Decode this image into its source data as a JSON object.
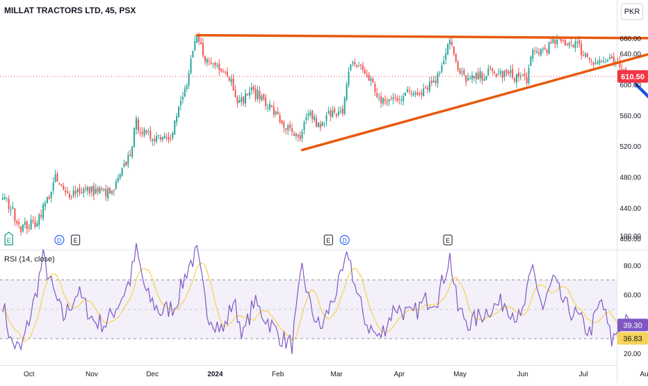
{
  "header": {
    "title": "MILLAT TRACTORS LTD, 45, PSX",
    "currency": "PKR"
  },
  "rsi": {
    "title": "RSI (14, close)"
  },
  "colors": {
    "up": "#26a69a",
    "down": "#ef5350",
    "trend": "#e8590c",
    "arrow": "#1e53e5",
    "rsi_line": "#7e57c2",
    "rsi_ma": "#f7d35a",
    "price_tag": "#f23645"
  },
  "events": [
    {
      "label": "E",
      "kind": "earnings-green",
      "date": "2023-09-21"
    },
    {
      "label": "D",
      "kind": "dividend",
      "date": "2023-10-16"
    },
    {
      "label": "E",
      "kind": "earnings",
      "date": "2023-10-24"
    },
    {
      "label": "E",
      "kind": "earnings",
      "date": "2024-02-26"
    },
    {
      "label": "D",
      "kind": "dividend",
      "date": "2024-03-05"
    },
    {
      "label": "E",
      "kind": "earnings",
      "date": "2024-04-25"
    }
  ],
  "chart_data": [
    {
      "type": "candlestick",
      "title": "MILLAT TRACTORS LTD, 45, PSX",
      "y_axis": {
        "ticks": [
          "660.00",
          "640.00",
          "600.00",
          "560.00",
          "520.00",
          "480.00",
          "440.00",
          "400.00"
        ],
        "range": [
          395,
          665
        ]
      },
      "x_axis": {
        "ticks": [
          "Oct",
          "Nov",
          "Dec",
          "2024",
          "Feb",
          "Mar",
          "Apr",
          "May",
          "Jun",
          "Jul",
          "Aug"
        ]
      },
      "last_price": {
        "label": "610.50",
        "value": 610.5
      },
      "waypoints": [
        {
          "date": "2023-09-18",
          "close": 455
        },
        {
          "date": "2023-09-22",
          "close": 440
        },
        {
          "date": "2023-09-27",
          "close": 415
        },
        {
          "date": "2023-10-04",
          "close": 420
        },
        {
          "date": "2023-10-10",
          "close": 450
        },
        {
          "date": "2023-10-14",
          "close": 477
        },
        {
          "date": "2023-10-19",
          "close": 457
        },
        {
          "date": "2023-10-25",
          "close": 463
        },
        {
          "date": "2023-11-05",
          "close": 462
        },
        {
          "date": "2023-11-11",
          "close": 458
        },
        {
          "date": "2023-11-15",
          "close": 480
        },
        {
          "date": "2023-11-20",
          "close": 512
        },
        {
          "date": "2023-11-23",
          "close": 550
        },
        {
          "date": "2023-11-28",
          "close": 532
        },
        {
          "date": "2023-12-10",
          "close": 535
        },
        {
          "date": "2023-12-18",
          "close": 600
        },
        {
          "date": "2023-12-21",
          "close": 640
        },
        {
          "date": "2023-12-23",
          "close": 660
        },
        {
          "date": "2023-12-28",
          "close": 630
        },
        {
          "date": "2024-01-05",
          "close": 622
        },
        {
          "date": "2024-01-09",
          "close": 605
        },
        {
          "date": "2024-01-13",
          "close": 575
        },
        {
          "date": "2024-01-18",
          "close": 592
        },
        {
          "date": "2024-01-25",
          "close": 582
        },
        {
          "date": "2024-02-03",
          "close": 550
        },
        {
          "date": "2024-02-12",
          "close": 525
        },
        {
          "date": "2024-02-16",
          "close": 565
        },
        {
          "date": "2024-02-22",
          "close": 542
        },
        {
          "date": "2024-02-28",
          "close": 570
        },
        {
          "date": "2024-03-04",
          "close": 560
        },
        {
          "date": "2024-03-08",
          "close": 630
        },
        {
          "date": "2024-03-13",
          "close": 622
        },
        {
          "date": "2024-03-18",
          "close": 605
        },
        {
          "date": "2024-03-23",
          "close": 575
        },
        {
          "date": "2024-04-03",
          "close": 587
        },
        {
          "date": "2024-04-12",
          "close": 593
        },
        {
          "date": "2024-04-20",
          "close": 610
        },
        {
          "date": "2024-04-26",
          "close": 662
        },
        {
          "date": "2024-04-30",
          "close": 615
        },
        {
          "date": "2024-05-06",
          "close": 605
        },
        {
          "date": "2024-05-15",
          "close": 615
        },
        {
          "date": "2024-05-26",
          "close": 612
        },
        {
          "date": "2024-06-03",
          "close": 608
        },
        {
          "date": "2024-06-06",
          "close": 640
        },
        {
          "date": "2024-06-13",
          "close": 648
        },
        {
          "date": "2024-06-17",
          "close": 655
        },
        {
          "date": "2024-06-27",
          "close": 655
        },
        {
          "date": "2024-07-01",
          "close": 640
        },
        {
          "date": "2024-07-07",
          "close": 630
        },
        {
          "date": "2024-07-14",
          "close": 630
        },
        {
          "date": "2024-07-19",
          "close": 620
        },
        {
          "date": "2024-07-24",
          "close": 610.5
        }
      ],
      "annotations": [
        {
          "type": "trendline",
          "name": "resistance",
          "from": {
            "date": "2023-12-23",
            "price": 664
          },
          "to": {
            "date": "2024-08-08",
            "price": 660
          }
        },
        {
          "type": "trendline",
          "name": "support",
          "from": {
            "date": "2024-02-13",
            "price": 515
          },
          "to": {
            "date": "2024-08-10",
            "price": 645
          }
        },
        {
          "type": "arrow",
          "name": "projection-arrow",
          "from": {
            "date": "2024-07-27",
            "price": 600
          },
          "to": {
            "date": "2024-09-01",
            "price": 508
          }
        }
      ]
    },
    {
      "type": "line",
      "title": "RSI (14, close)",
      "y_axis": {
        "ticks": [
          "100.00",
          "80.00",
          "60.00",
          "20.00"
        ],
        "range": [
          15,
          100
        ]
      },
      "bands": {
        "upper": 70,
        "middle": 50,
        "lower": 30
      },
      "last_values": {
        "rsi": "39.30",
        "rsi_ma": "36.83"
      },
      "waypoints": [
        {
          "date": "2023-09-18",
          "rsi": 55
        },
        {
          "date": "2023-09-22",
          "rsi": 28
        },
        {
          "date": "2023-09-27",
          "rsi": 22
        },
        {
          "date": "2023-10-04",
          "rsi": 58
        },
        {
          "date": "2023-10-08",
          "rsi": 85
        },
        {
          "date": "2023-10-13",
          "rsi": 62
        },
        {
          "date": "2023-10-18",
          "rsi": 44
        },
        {
          "date": "2023-10-25",
          "rsi": 62
        },
        {
          "date": "2023-11-02",
          "rsi": 42
        },
        {
          "date": "2023-11-08",
          "rsi": 40
        },
        {
          "date": "2023-11-15",
          "rsi": 56
        },
        {
          "date": "2023-11-20",
          "rsi": 70
        },
        {
          "date": "2023-11-23",
          "rsi": 90
        },
        {
          "date": "2023-11-28",
          "rsi": 60
        },
        {
          "date": "2023-12-05",
          "rsi": 48
        },
        {
          "date": "2023-12-12",
          "rsi": 52
        },
        {
          "date": "2023-12-19",
          "rsi": 80
        },
        {
          "date": "2023-12-23",
          "rsi": 88
        },
        {
          "date": "2023-12-28",
          "rsi": 48
        },
        {
          "date": "2024-01-05",
          "rsi": 35
        },
        {
          "date": "2024-01-10",
          "rsi": 56
        },
        {
          "date": "2024-01-15",
          "rsi": 32
        },
        {
          "date": "2024-01-20",
          "rsi": 55
        },
        {
          "date": "2024-01-26",
          "rsi": 44
        },
        {
          "date": "2024-02-03",
          "rsi": 30
        },
        {
          "date": "2024-02-08",
          "rsi": 26
        },
        {
          "date": "2024-02-13",
          "rsi": 78
        },
        {
          "date": "2024-02-17",
          "rsi": 52
        },
        {
          "date": "2024-02-22",
          "rsi": 36
        },
        {
          "date": "2024-02-28",
          "rsi": 56
        },
        {
          "date": "2024-03-03",
          "rsi": 70
        },
        {
          "date": "2024-03-07",
          "rsi": 88
        },
        {
          "date": "2024-03-11",
          "rsi": 60
        },
        {
          "date": "2024-03-16",
          "rsi": 40
        },
        {
          "date": "2024-03-22",
          "rsi": 30
        },
        {
          "date": "2024-03-30",
          "rsi": 52
        },
        {
          "date": "2024-04-07",
          "rsi": 45
        },
        {
          "date": "2024-04-14",
          "rsi": 56
        },
        {
          "date": "2024-04-20",
          "rsi": 58
        },
        {
          "date": "2024-04-26",
          "rsi": 86
        },
        {
          "date": "2024-04-30",
          "rsi": 50
        },
        {
          "date": "2024-05-06",
          "rsi": 40
        },
        {
          "date": "2024-05-15",
          "rsi": 50
        },
        {
          "date": "2024-05-23",
          "rsi": 55
        },
        {
          "date": "2024-05-31",
          "rsi": 42
        },
        {
          "date": "2024-06-06",
          "rsi": 78
        },
        {
          "date": "2024-06-11",
          "rsi": 50
        },
        {
          "date": "2024-06-16",
          "rsi": 70
        },
        {
          "date": "2024-06-22",
          "rsi": 52
        },
        {
          "date": "2024-06-28",
          "rsi": 45
        },
        {
          "date": "2024-07-04",
          "rsi": 34
        },
        {
          "date": "2024-07-10",
          "rsi": 56
        },
        {
          "date": "2024-07-15",
          "rsi": 28
        },
        {
          "date": "2024-07-20",
          "rsi": 42
        },
        {
          "date": "2024-07-24",
          "rsi": 39.3
        }
      ]
    }
  ]
}
